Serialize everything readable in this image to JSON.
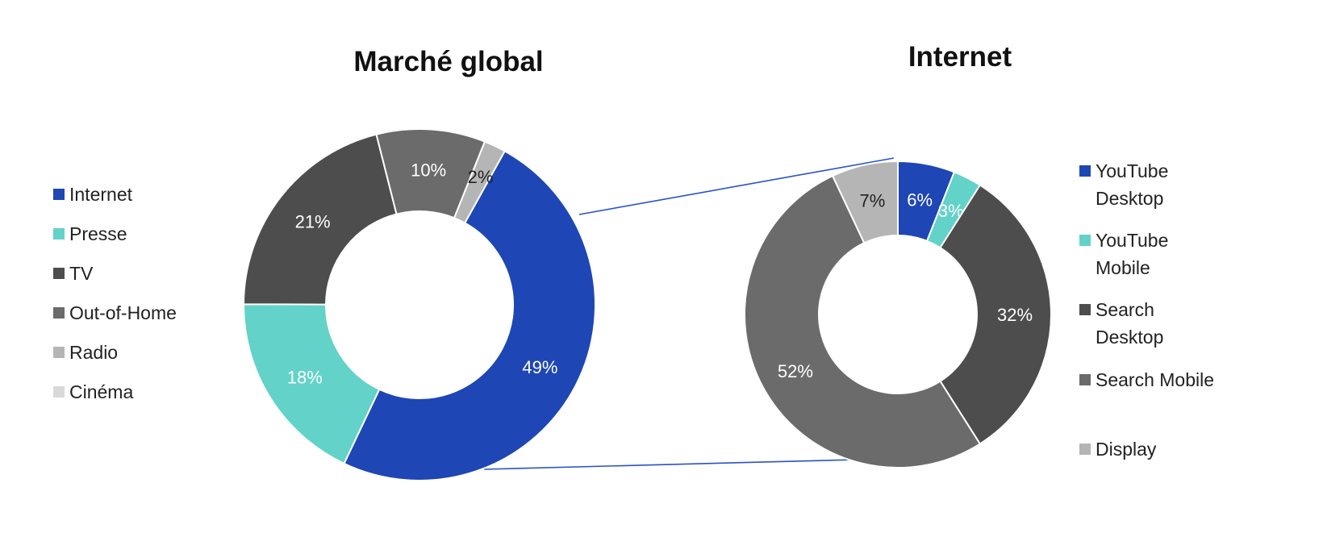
{
  "chart_data": [
    {
      "type": "pie",
      "variant": "donut",
      "title": "Marché global",
      "legend_position": "left",
      "categories": [
        "Internet",
        "Presse",
        "TV",
        "Out-of-Home",
        "Radio",
        "Cinéma"
      ],
      "values": [
        49,
        18,
        21,
        10,
        2,
        0
      ],
      "data_labels": [
        "49%",
        "18%",
        "21%",
        "10%",
        "2%",
        ""
      ],
      "colors": [
        "#1e46b4",
        "#63d2c8",
        "#4d4d4d",
        "#6b6b6b",
        "#b5b5b5",
        "#d9d9d9"
      ],
      "label_colors": [
        "#ffffff",
        "#ffffff",
        "#ffffff",
        "#ffffff",
        "#222222",
        "#222222"
      ]
    },
    {
      "type": "pie",
      "variant": "donut",
      "title": "Internet",
      "legend_position": "right",
      "categories": [
        "YouTube Desktop",
        "YouTube Mobile",
        "Search Desktop",
        "Search Mobile",
        "Display"
      ],
      "values": [
        6,
        3,
        32,
        52,
        7
      ],
      "data_labels": [
        "6%",
        "3%",
        "32%",
        "52%",
        "7%"
      ],
      "colors": [
        "#1e46b4",
        "#63d2c8",
        "#4d4d4d",
        "#6b6b6b",
        "#b5b5b5"
      ],
      "label_colors": [
        "#ffffff",
        "#ffffff",
        "#ffffff",
        "#ffffff",
        "#222222"
      ]
    }
  ],
  "connector_color": "#2a52c8"
}
